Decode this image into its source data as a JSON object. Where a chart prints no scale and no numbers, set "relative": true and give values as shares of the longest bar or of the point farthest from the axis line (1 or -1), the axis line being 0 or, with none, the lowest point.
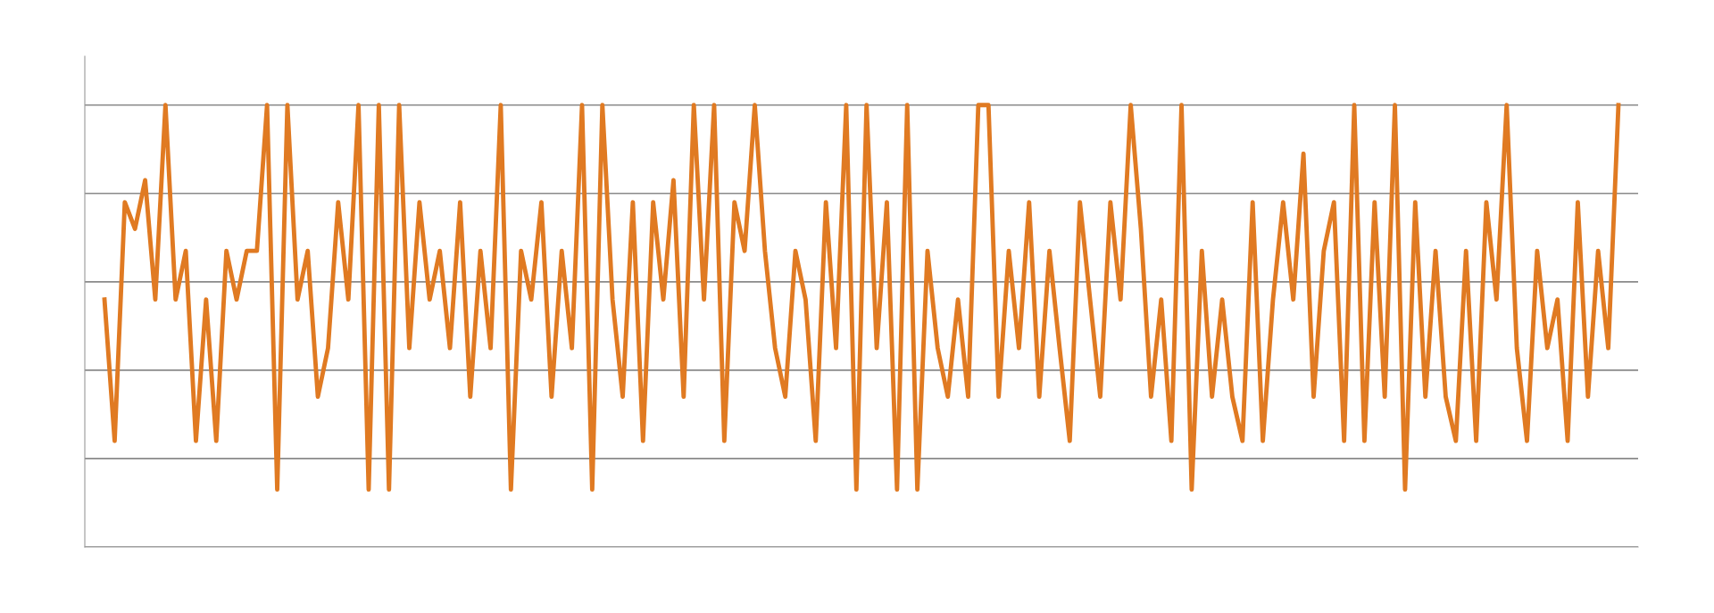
{
  "chart_data": {
    "type": "line",
    "relative": true,
    "grid": "y",
    "marker": "none",
    "line_style": "solid",
    "categories": [
      null,
      null,
      null,
      null,
      null,
      null,
      null,
      null,
      null,
      null,
      null,
      null,
      null,
      null,
      null,
      null,
      null,
      null,
      null,
      null,
      null,
      null,
      null,
      null,
      null,
      null,
      null,
      null,
      null,
      null,
      null,
      null,
      null,
      null,
      null,
      null,
      null,
      null,
      null,
      null,
      null,
      null,
      null,
      null,
      null,
      null,
      null,
      null,
      null,
      null,
      null,
      null,
      null,
      null,
      null,
      null,
      null,
      null,
      null,
      null,
      null,
      null,
      null,
      null,
      null,
      null,
      null,
      null,
      null,
      null,
      null,
      null,
      null,
      null,
      null,
      null,
      null,
      null,
      null,
      null,
      null,
      null,
      null,
      null,
      null,
      null,
      null,
      null,
      null,
      null,
      null,
      null,
      null,
      null,
      null,
      null,
      null,
      null,
      null,
      null,
      null,
      null,
      null,
      null,
      null,
      null,
      null,
      null,
      null,
      null,
      null,
      null,
      null,
      null,
      null,
      null,
      null,
      null,
      null,
      null,
      null,
      null,
      null,
      null,
      null,
      null,
      null,
      null,
      null,
      null,
      null,
      null,
      null,
      null,
      null,
      null,
      null,
      null,
      null,
      null,
      null,
      null,
      null,
      null,
      null,
      null,
      null,
      null,
      null,
      null
    ],
    "series": [
      {
        "color": "#e07a22",
        "values": [
          0.56,
          0.24,
          0.78,
          0.72,
          0.83,
          0.56,
          1.0,
          0.56,
          0.67,
          0.24,
          0.56,
          0.24,
          0.67,
          0.56,
          0.67,
          0.67,
          1.0,
          0.13,
          1.0,
          0.56,
          0.67,
          0.34,
          0.45,
          0.78,
          0.56,
          1.0,
          0.13,
          1.0,
          0.13,
          1.0,
          0.45,
          0.78,
          0.56,
          0.67,
          0.45,
          0.78,
          0.34,
          0.67,
          0.45,
          1.0,
          0.13,
          0.67,
          0.56,
          0.78,
          0.34,
          0.67,
          0.45,
          1.0,
          0.13,
          1.0,
          0.56,
          0.34,
          0.78,
          0.24,
          0.78,
          0.56,
          0.83,
          0.34,
          1.0,
          0.56,
          1.0,
          0.24,
          0.78,
          0.67,
          1.0,
          0.67,
          0.45,
          0.34,
          0.67,
          0.56,
          0.24,
          0.78,
          0.45,
          1.0,
          0.13,
          1.0,
          0.45,
          0.78,
          0.13,
          1.0,
          0.13,
          0.67,
          0.45,
          0.34,
          0.56,
          0.34,
          1.0,
          1.0,
          0.34,
          0.67,
          0.45,
          0.78,
          0.34,
          0.67,
          0.45,
          0.24,
          0.78,
          0.56,
          0.34,
          0.78,
          0.56,
          1.0,
          0.72,
          0.34,
          0.56,
          0.24,
          1.0,
          0.13,
          0.67,
          0.34,
          0.56,
          0.34,
          0.24,
          0.78,
          0.24,
          0.56,
          0.78,
          0.56,
          0.89,
          0.34,
          0.67,
          0.78,
          0.24,
          1.0,
          0.24,
          0.78,
          0.34,
          1.0,
          0.13,
          0.78,
          0.34,
          0.67,
          0.34,
          0.24,
          0.67,
          0.24,
          0.78,
          0.56,
          1.0,
          0.45,
          0.24,
          0.67,
          0.45,
          0.56,
          0.24,
          0.78,
          0.34,
          0.67,
          0.45,
          1.0
        ]
      }
    ]
  }
}
